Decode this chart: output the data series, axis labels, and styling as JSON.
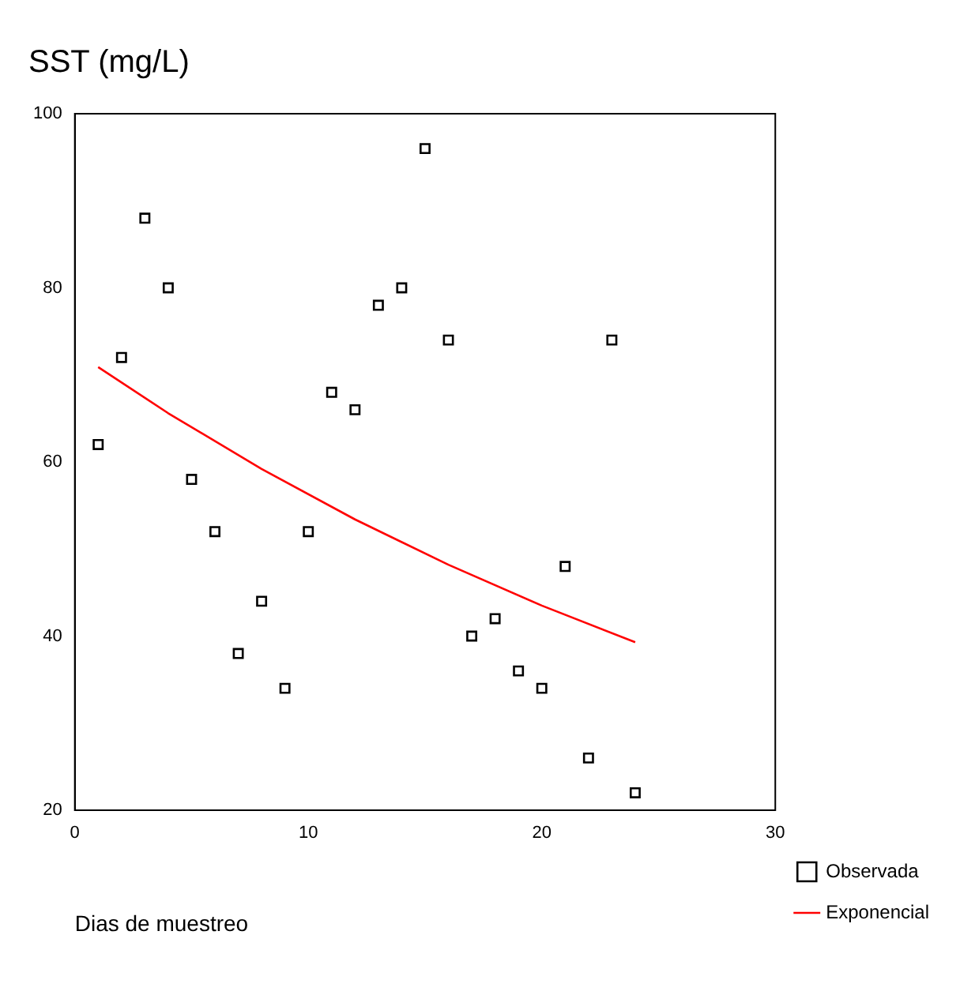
{
  "chart_data": {
    "type": "scatter",
    "title": "SST (mg/L)",
    "xlabel": "Dias de muestreo",
    "xlim": [
      0,
      30
    ],
    "xticks": [
      0,
      10,
      20,
      30
    ],
    "ylim": [
      20,
      100
    ],
    "yticks": [
      20,
      40,
      60,
      80,
      100
    ],
    "grid": false,
    "legend": "right",
    "marker": "square",
    "series": [
      {
        "name": "Observada",
        "color": "#000000",
        "x": [
          1,
          2,
          3,
          4,
          5,
          6,
          7,
          8,
          9,
          10,
          11,
          12,
          13,
          14,
          15,
          16,
          17,
          18,
          19,
          20,
          21,
          22,
          23,
          24
        ],
        "values": [
          62,
          72,
          88,
          80,
          58,
          52,
          38,
          44,
          34,
          52,
          68,
          66,
          78,
          80,
          96,
          74,
          40,
          42,
          36,
          34,
          48,
          26,
          74,
          22
        ]
      },
      {
        "name": "Exponencial",
        "type": "line",
        "marker": "none",
        "color": "#ff0000",
        "x": [
          1,
          4,
          8,
          12,
          16,
          20,
          24
        ],
        "values": [
          70.9,
          65.6,
          59.2,
          53.4,
          48.2,
          43.5,
          39.3
        ]
      }
    ]
  }
}
